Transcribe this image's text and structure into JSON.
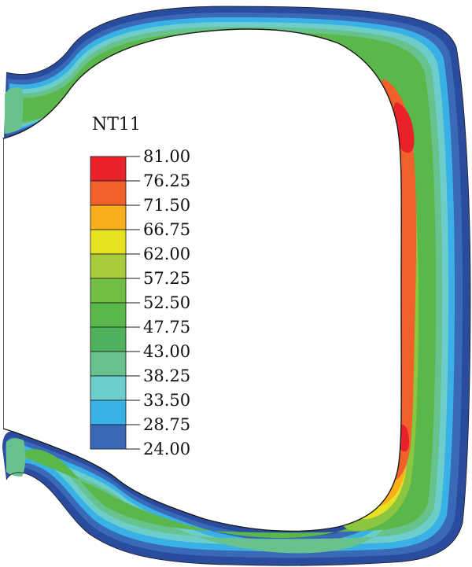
{
  "legend": {
    "title": "NT11",
    "levels": [
      {
        "value": "81.00",
        "color": "#e8212b"
      },
      {
        "value": "76.25",
        "color": "#f0602a"
      },
      {
        "value": "71.50",
        "color": "#f9ae1b"
      },
      {
        "value": "66.75",
        "color": "#e6e221"
      },
      {
        "value": "62.00",
        "color": "#a8cb3d"
      },
      {
        "value": "57.25",
        "color": "#72bd44"
      },
      {
        "value": "52.50",
        "color": "#5ab84a"
      },
      {
        "value": "47.75",
        "color": "#4fb15b"
      },
      {
        "value": "43.00",
        "color": "#67c28d"
      },
      {
        "value": "38.25",
        "color": "#6ccdcb"
      },
      {
        "value": "33.50",
        "color": "#39b1e7"
      },
      {
        "value": "28.75",
        "color": "#3a6ab7"
      },
      {
        "value": "24.00",
        "color": "#2a4c9e"
      }
    ]
  },
  "contour_colors": {
    "outer": "#2a4c9e",
    "blue": "#3a6ab7",
    "light_blue": "#39b1e7",
    "cyan": "#6ccdcb",
    "mint": "#67c28d",
    "green": "#5ab84a",
    "light_green": "#8cc63f",
    "yellow": "#e6e221",
    "orange": "#f9ae1b",
    "dark_orange": "#f0602a",
    "red": "#e8212b",
    "outline": "#1a1a1a"
  }
}
